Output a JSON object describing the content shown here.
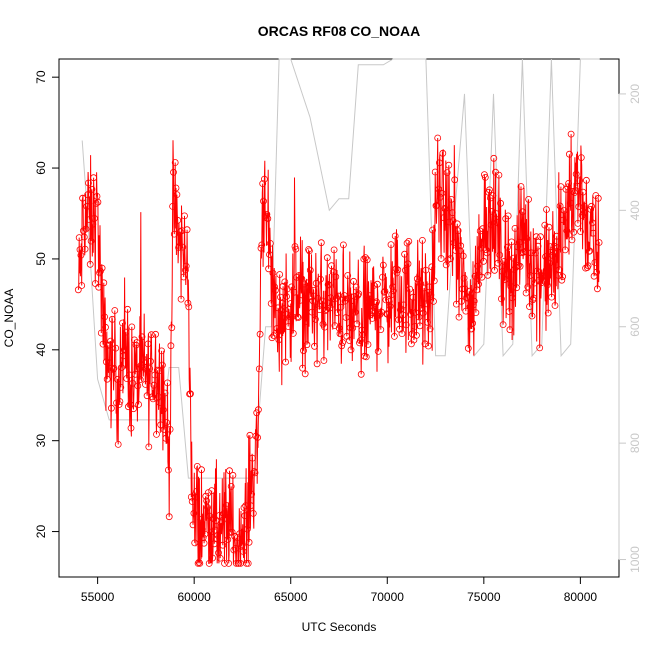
{
  "chart_data": {
    "type": "line",
    "title": "ORCAS RF08 CO_NOAA",
    "xlabel": "UTC Seconds",
    "ylabel": "CO_NOAA",
    "xlim": [
      53000,
      82000
    ],
    "ylim": [
      15,
      72
    ],
    "x_ticks": [
      "55000",
      "60000",
      "65000",
      "70000",
      "75000",
      "80000"
    ],
    "y_ticks": [
      "20",
      "30",
      "40",
      "50",
      "60",
      "70"
    ],
    "y2_ticks": [
      "200",
      "400",
      "600",
      "800",
      "1000"
    ],
    "y2lim": [
      1030,
      140
    ],
    "series": [
      {
        "role": "CO",
        "color": "#ff0000",
        "marker": "open-circle",
        "x_range": [
          54000,
          81000
        ],
        "anchors": [
          [
            54000,
            46
          ],
          [
            54300,
            55
          ],
          [
            54700,
            54
          ],
          [
            55000,
            55
          ],
          [
            55300,
            41
          ],
          [
            55700,
            38
          ],
          [
            56100,
            37
          ],
          [
            56500,
            40
          ],
          [
            56800,
            36
          ],
          [
            57200,
            38
          ],
          [
            57600,
            37
          ],
          [
            58000,
            38
          ],
          [
            58400,
            36
          ],
          [
            58700,
            27
          ],
          [
            58900,
            55
          ],
          [
            59200,
            52
          ],
          [
            59500,
            50
          ],
          [
            59700,
            48
          ],
          [
            59900,
            22
          ],
          [
            60300,
            21
          ],
          [
            60800,
            21
          ],
          [
            61300,
            20
          ],
          [
            61800,
            21
          ],
          [
            62300,
            18
          ],
          [
            62700,
            21
          ],
          [
            63000,
            26
          ],
          [
            63300,
            30
          ],
          [
            63500,
            55
          ],
          [
            63700,
            58
          ],
          [
            64000,
            48
          ],
          [
            64300,
            43
          ],
          [
            64800,
            45
          ],
          [
            65500,
            46
          ],
          [
            66500,
            45
          ],
          [
            67500,
            45
          ],
          [
            68500,
            43
          ],
          [
            69500,
            45
          ],
          [
            70500,
            46
          ],
          [
            71500,
            46
          ],
          [
            72200,
            44
          ],
          [
            72600,
            57
          ],
          [
            73000,
            55
          ],
          [
            73500,
            52
          ],
          [
            74000,
            46
          ],
          [
            74500,
            45
          ],
          [
            75000,
            55
          ],
          [
            75500,
            54
          ],
          [
            76000,
            50
          ],
          [
            76500,
            48
          ],
          [
            77000,
            53
          ],
          [
            77500,
            50
          ],
          [
            78000,
            48
          ],
          [
            78500,
            49
          ],
          [
            79000,
            51
          ],
          [
            79500,
            57
          ],
          [
            80000,
            58
          ],
          [
            80500,
            52
          ],
          [
            81000,
            50
          ]
        ]
      },
      {
        "role": "pressure",
        "color": "#c8c8c8",
        "points": [
          [
            54200,
            280
          ],
          [
            54500,
            420
          ],
          [
            55000,
            690
          ],
          [
            55600,
            760
          ],
          [
            58400,
            760
          ],
          [
            58700,
            670
          ],
          [
            59200,
            670
          ],
          [
            59700,
            860
          ],
          [
            62000,
            860
          ],
          [
            63100,
            860
          ],
          [
            63700,
            600
          ],
          [
            64000,
            600
          ],
          [
            64400,
            140
          ],
          [
            65000,
            140
          ],
          [
            66000,
            240
          ],
          [
            67000,
            400
          ],
          [
            67500,
            380
          ],
          [
            68000,
            380
          ],
          [
            68500,
            150
          ],
          [
            69800,
            150
          ],
          [
            70300,
            140
          ],
          [
            71000,
            140
          ],
          [
            72000,
            140
          ],
          [
            72500,
            650
          ],
          [
            73000,
            650
          ],
          [
            73500,
            400
          ],
          [
            74000,
            200
          ],
          [
            74500,
            650
          ],
          [
            75000,
            630
          ],
          [
            75500,
            200
          ],
          [
            76000,
            650
          ],
          [
            76500,
            630
          ],
          [
            77000,
            140
          ],
          [
            77500,
            650
          ],
          [
            78000,
            630
          ],
          [
            78500,
            140
          ],
          [
            79000,
            650
          ],
          [
            79500,
            630
          ],
          [
            80000,
            140
          ],
          [
            81000,
            140
          ]
        ]
      }
    ]
  }
}
